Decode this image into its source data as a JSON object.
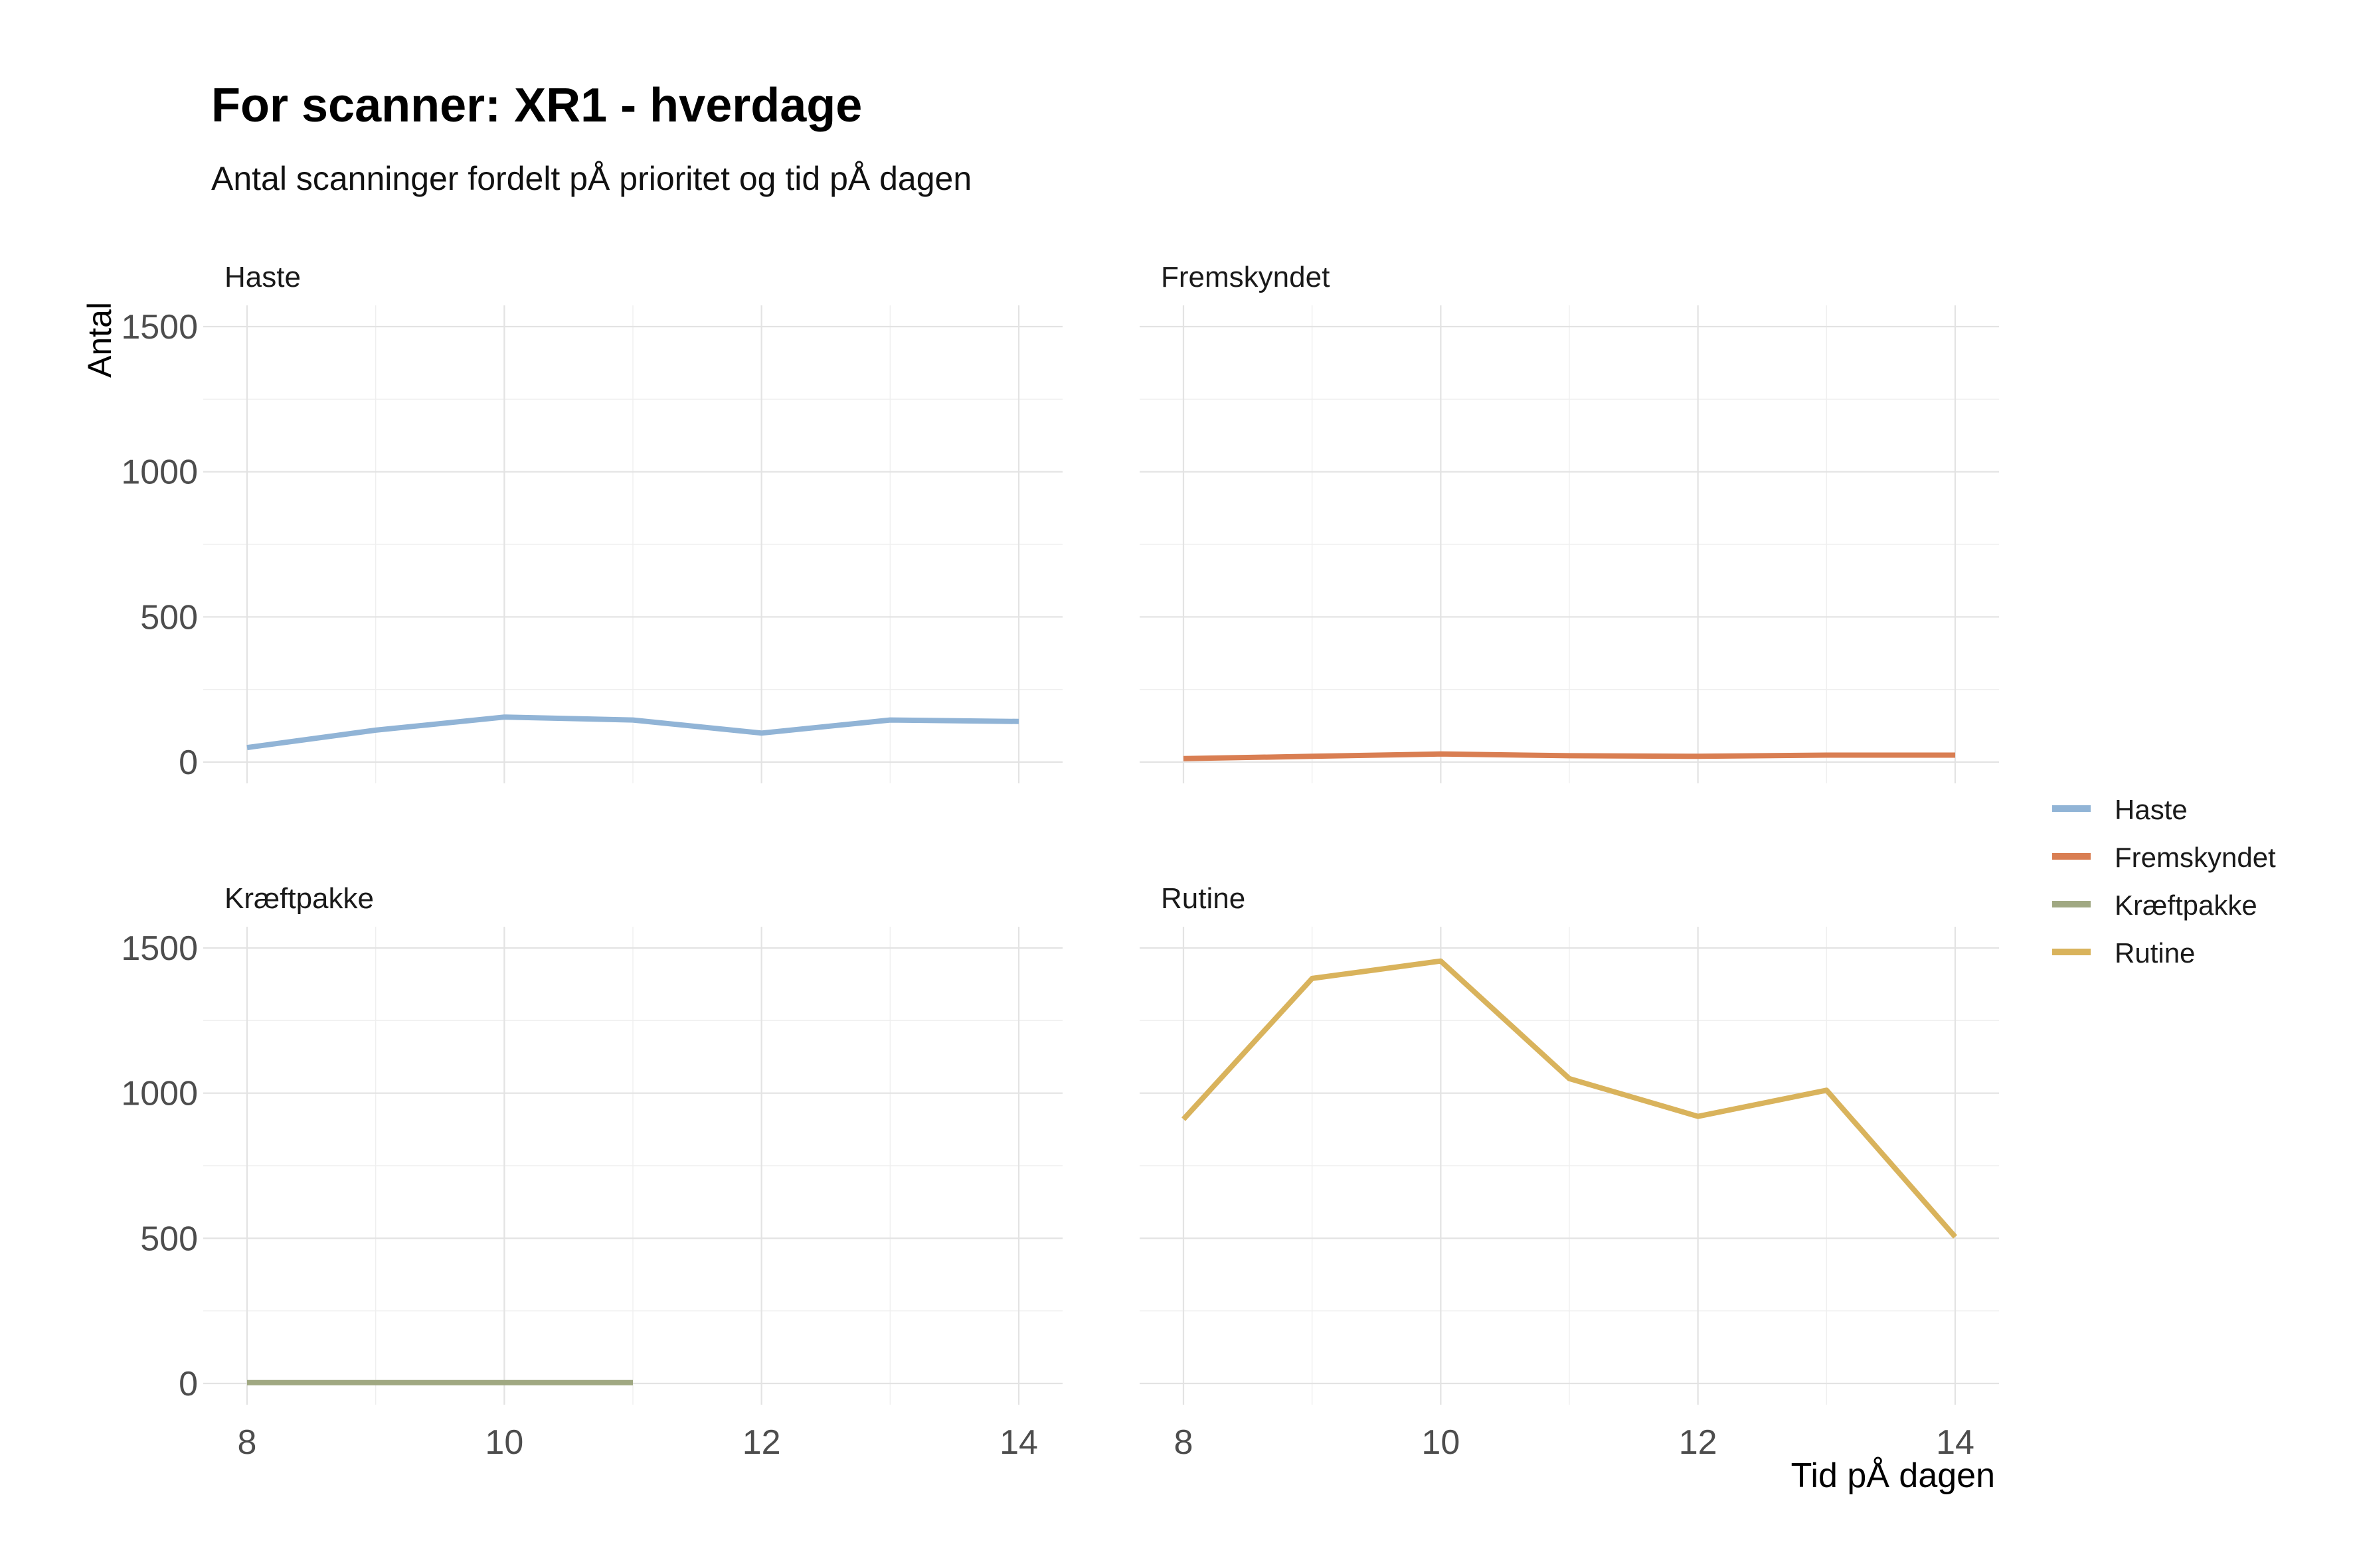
{
  "chart_data": {
    "type": "line",
    "title": "For scanner: XR1 - hverdage",
    "subtitle": "Antal scanninger fordelt pÅ prioritet og tid pÅ dagen",
    "xlabel": "Tid pÅ dagen",
    "ylabel": "Antal",
    "xlim": [
      8,
      14
    ],
    "ylim": [
      0,
      1500
    ],
    "x_ticks": [
      8,
      10,
      12,
      14
    ],
    "y_ticks": [
      0,
      500,
      1000,
      1500
    ],
    "grid": true,
    "legend_position": "right",
    "facets": [
      {
        "label": "Haste",
        "color": "#91B4D6",
        "x": [
          8,
          9,
          10,
          11,
          12,
          13,
          14
        ],
        "y": [
          50,
          110,
          155,
          145,
          100,
          145,
          140
        ]
      },
      {
        "label": "Fremskyndet",
        "color": "#D97E52",
        "x": [
          8,
          9,
          10,
          11,
          12,
          13,
          14
        ],
        "y": [
          12,
          20,
          28,
          22,
          20,
          24,
          24
        ]
      },
      {
        "label": "Kræftpakke",
        "color": "#A0A882",
        "x": [
          8,
          9,
          10,
          11
        ],
        "y": [
          3,
          3,
          3,
          3
        ]
      },
      {
        "label": "Rutine",
        "color": "#D9B35C",
        "x": [
          8,
          9,
          10,
          11,
          12,
          13,
          14
        ],
        "y": [
          910,
          1395,
          1455,
          1050,
          920,
          1010,
          505
        ]
      }
    ],
    "legend": [
      "Haste",
      "Fremskyndet",
      "Kræftpakke",
      "Rutine"
    ]
  }
}
